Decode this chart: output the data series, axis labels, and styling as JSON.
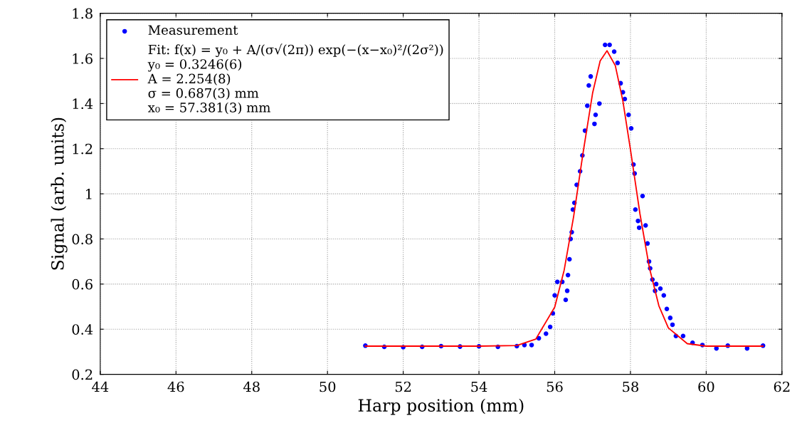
{
  "chart_data": {
    "type": "scatter",
    "xlabel": "Harp position (mm)",
    "ylabel": "Signal (arb. units)",
    "xlim": [
      44,
      62
    ],
    "xticks": [
      44,
      46,
      48,
      50,
      52,
      54,
      56,
      58,
      60,
      62
    ],
    "ylim": [
      0.2,
      1.8
    ],
    "yticks": [
      0.2,
      0.4,
      0.6,
      0.8,
      1,
      1.2,
      1.4,
      1.6,
      1.8
    ],
    "grid": true,
    "legend": "top left",
    "series": [
      {
        "name": "Measurement",
        "marker": "circle",
        "color": "#0000ff",
        "x": [
          51,
          51.5,
          52,
          52.5,
          53,
          53.5,
          54,
          54.5,
          55,
          55.2,
          55.39,
          55.58,
          55.77,
          55.88,
          55.95,
          56.0,
          56.07,
          56.2,
          56.29,
          56.33,
          56.35,
          56.39,
          56.42,
          56.45,
          56.48,
          56.52,
          56.58,
          56.67,
          56.73,
          56.8,
          56.86,
          56.9,
          56.95,
          57.05,
          57.08,
          57.18,
          57.33,
          57.45,
          57.57,
          57.66,
          57.74,
          57.8,
          57.85,
          57.95,
          58.02,
          58.08,
          58.11,
          58.13,
          58.2,
          58.23,
          58.32,
          58.4,
          58.45,
          58.49,
          58.52,
          58.58,
          58.65,
          58.68,
          58.79,
          58.88,
          58.96,
          59.05,
          59.11,
          59.2,
          59.39,
          59.64,
          59.9,
          60.27,
          60.57,
          61.08,
          61.5
        ],
        "values": [
          0.327,
          0.322,
          0.32,
          0.322,
          0.325,
          0.323,
          0.324,
          0.322,
          0.325,
          0.33,
          0.33,
          0.36,
          0.38,
          0.41,
          0.47,
          0.55,
          0.61,
          0.61,
          0.53,
          0.57,
          0.64,
          0.71,
          0.8,
          0.83,
          0.93,
          0.96,
          1.04,
          1.1,
          1.17,
          1.28,
          1.39,
          1.48,
          1.52,
          1.31,
          1.35,
          1.4,
          1.66,
          1.66,
          1.63,
          1.58,
          1.49,
          1.45,
          1.42,
          1.35,
          1.29,
          1.13,
          1.09,
          0.93,
          0.88,
          0.85,
          0.99,
          0.86,
          0.78,
          0.7,
          0.67,
          0.62,
          0.57,
          0.6,
          0.58,
          0.55,
          0.49,
          0.45,
          0.42,
          0.37,
          0.37,
          0.34,
          0.33,
          0.315,
          0.327,
          0.315,
          0.327
        ]
      },
      {
        "name": "Fit: f(x) = y₀ + A/(σ√(2π)) exp(−(x−x₀)²/(2σ²))\ny₀ = 0.3246(6)\nA = 2.254(8)\nσ = 0.687(3) mm\nx₀ = 57.381(3) mm",
        "type": "line",
        "marker": "none",
        "line_style": "solid",
        "color": "#ff0000",
        "x": [
          51,
          54,
          55,
          55.5,
          56,
          56.25,
          56.5,
          56.75,
          57,
          57.2,
          57.381,
          57.6,
          57.8,
          58,
          58.25,
          58.5,
          58.75,
          59,
          59.5,
          60,
          61.5
        ],
        "values": [
          0.325,
          0.325,
          0.328,
          0.356,
          0.498,
          0.662,
          0.9,
          1.183,
          1.446,
          1.589,
          1.634,
          1.568,
          1.411,
          1.196,
          0.912,
          0.672,
          0.504,
          0.406,
          0.336,
          0.325,
          0.325
        ]
      }
    ]
  }
}
